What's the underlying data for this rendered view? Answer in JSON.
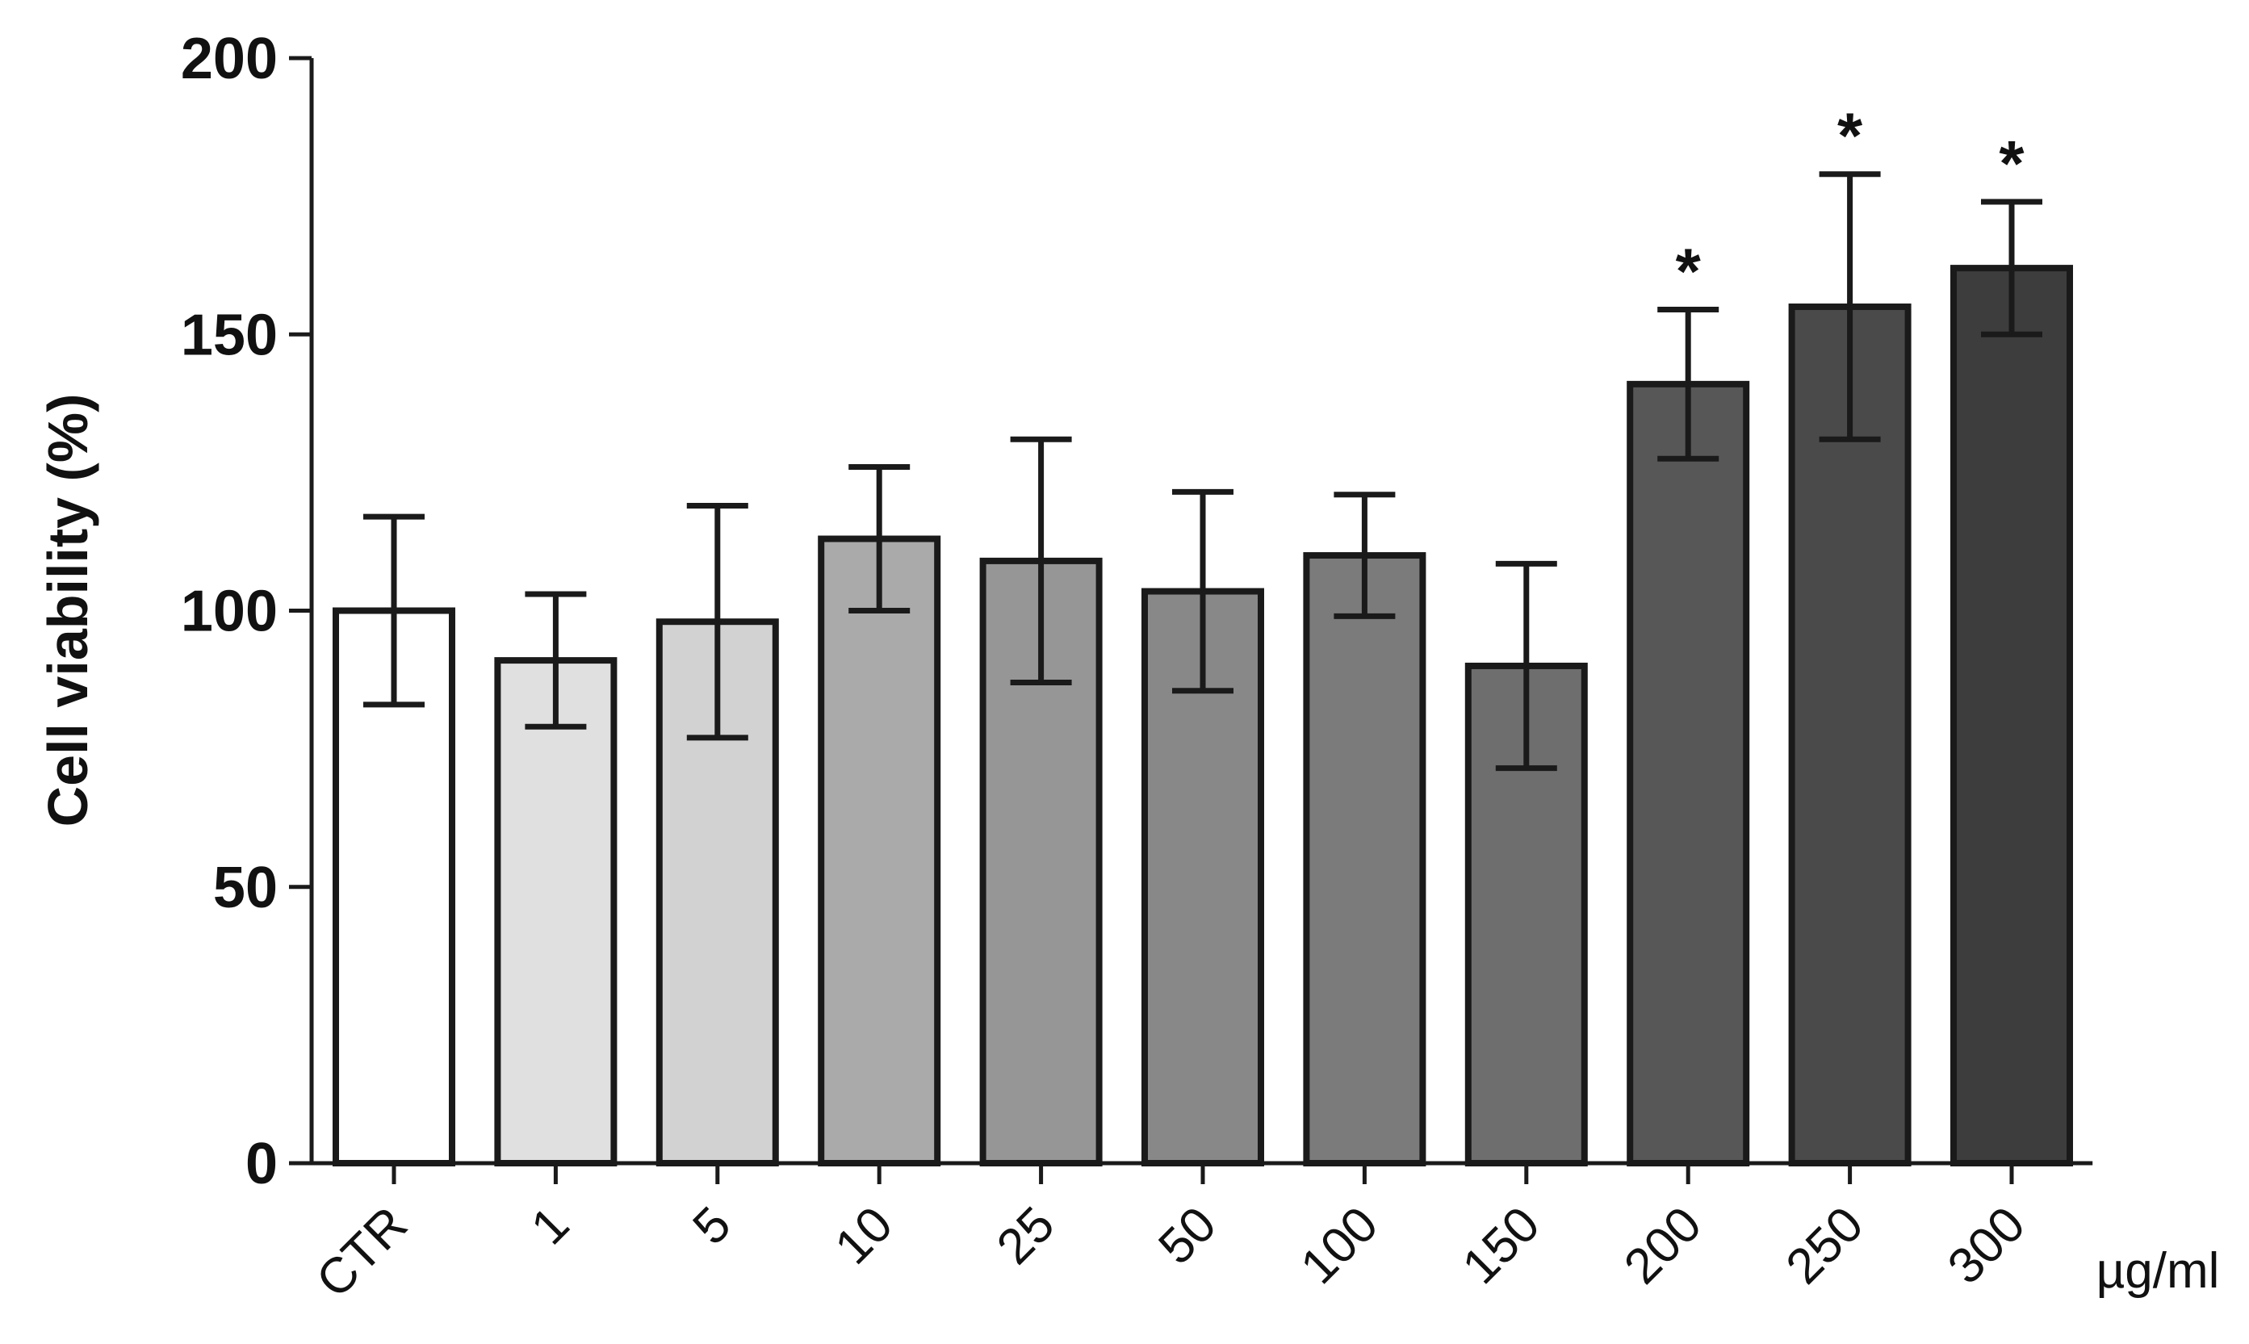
{
  "chart_data": {
    "type": "bar",
    "y_label": "Cell viability (%)",
    "x_unit": "µg/ml",
    "categories": [
      "CTR",
      "1",
      "5",
      "10",
      "25",
      "50",
      "100",
      "150",
      "200",
      "250",
      "300"
    ],
    "values": [
      100,
      91,
      98,
      113,
      109,
      103.5,
      110,
      90,
      141,
      155,
      162
    ],
    "errors": [
      17,
      12,
      21,
      13,
      22,
      18,
      11,
      18.5,
      13.5,
      24,
      12
    ],
    "colors": [
      "#ffffff",
      "#e0e0e0",
      "#d2d2d2",
      "#aaaaaa",
      "#969696",
      "#888888",
      "#7b7b7b",
      "#6e6e6e",
      "#575757",
      "#4a4a4a",
      "#3d3d3d"
    ],
    "markers": [
      null,
      null,
      null,
      null,
      null,
      null,
      null,
      null,
      "*",
      "*",
      "*"
    ],
    "ylim": [
      0,
      200
    ],
    "yticks": [
      0,
      50,
      100,
      150,
      200
    ]
  }
}
